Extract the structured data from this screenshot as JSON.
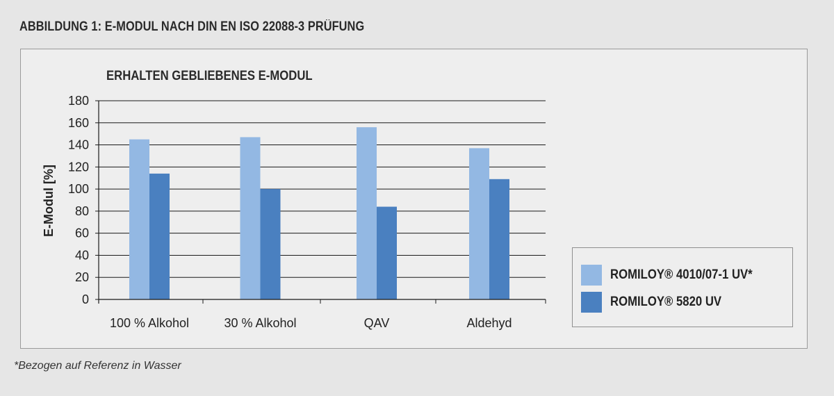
{
  "figure_title": "ABBILDUNG 1: E-MODUL NACH DIN EN ISO 22088-3 PRÜFUNG",
  "footnote": "*Bezogen auf Referenz in Wasser",
  "colors": {
    "series1": "#93b8e3",
    "series2": "#4a80c0",
    "grid": "#1a1a1a"
  },
  "chart_data": {
    "type": "bar",
    "title": "ERHALTEN GEBLIEBENES E-MODUL",
    "xlabel": "",
    "ylabel": "E-Modul [%]",
    "ylim": [
      0,
      180
    ],
    "yticks": [
      0,
      20,
      40,
      60,
      80,
      100,
      120,
      140,
      160,
      180
    ],
    "grid": true,
    "legend_position": "bottom-right",
    "categories": [
      "100 % Alkohol",
      "30 % Alkohol",
      "QAV",
      "Aldehyd"
    ],
    "series": [
      {
        "name": "ROMILOY® 4010/07-1 UV*",
        "values": [
          145,
          147,
          156,
          137
        ]
      },
      {
        "name": "ROMILOY® 5820 UV",
        "values": [
          114,
          100,
          84,
          109
        ]
      }
    ]
  }
}
